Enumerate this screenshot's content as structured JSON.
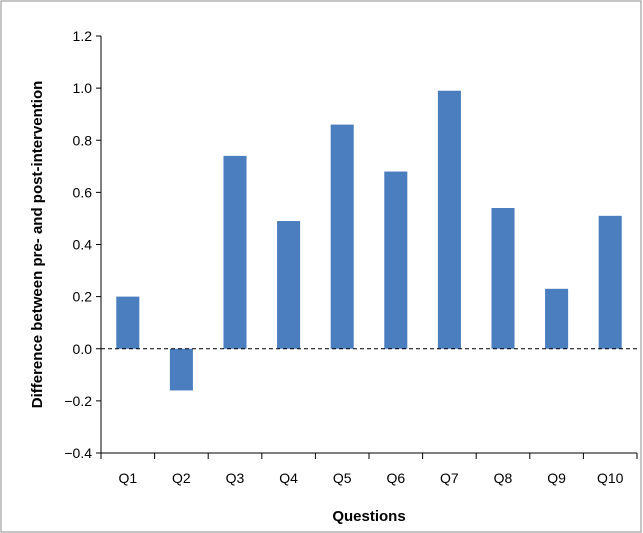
{
  "chart_data": {
    "type": "bar",
    "title": "",
    "xlabel": "Questions",
    "ylabel": "Difference between pre- and post-intervention",
    "categories": [
      "Q1",
      "Q2",
      "Q3",
      "Q4",
      "Q5",
      "Q6",
      "Q7",
      "Q8",
      "Q9",
      "Q10"
    ],
    "values": [
      0.2,
      -0.16,
      0.74,
      0.49,
      0.86,
      0.68,
      0.99,
      0.54,
      0.23,
      0.51
    ],
    "ylim": [
      -0.4,
      1.2
    ],
    "yticks": [
      -0.4,
      -0.2,
      0.0,
      0.2,
      0.4,
      0.6,
      0.8,
      1.0,
      1.2
    ],
    "ytick_labels": [
      "−0.4",
      "−0.2",
      "0.0",
      "0.2",
      "0.4",
      "0.6",
      "0.8",
      "1.0",
      "1.2"
    ],
    "grid": false,
    "zero_line": "dashed",
    "colors": {
      "bar": "#4a7ebf",
      "axis": "#000000",
      "frame": "#8c8c8c"
    }
  }
}
